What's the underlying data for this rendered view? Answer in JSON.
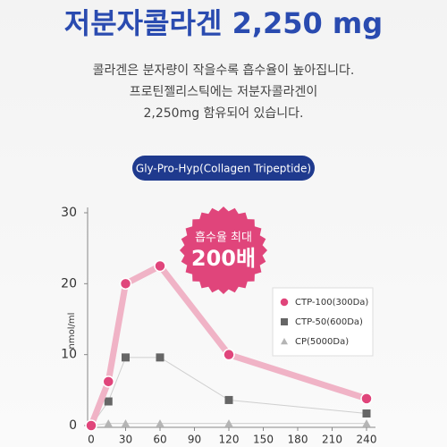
{
  "chart_data": {
    "type": "line",
    "title": "저분자콜라겐 2,250 mg",
    "description": [
      "콜라겐은 분자량이 작을수록 흡수율이 높아집니다.",
      "프로틴젤리스틱에는 저분자콜라겐이",
      "2,250mg 함유되어 있습니다."
    ],
    "subtitle": "Gly-Pro-Hyp(Collagen Tripeptide)",
    "badge": [
      "흡수율 최대",
      "200배"
    ],
    "y_label": "nmol/ml",
    "x": [
      0,
      15,
      30,
      60,
      120,
      240
    ],
    "series": [
      {
        "name": "CTP-100(300Da)",
        "color": "#e0457b",
        "marker": "circle",
        "values": [
          0,
          6.2,
          20,
          22.5,
          10,
          3.8
        ]
      },
      {
        "name": "CTP-50(600Da)",
        "color": "#666666",
        "marker": "square",
        "values": [
          0,
          3.4,
          9.6,
          9.6,
          3.6,
          1.7
        ]
      },
      {
        "name": "CP(5000Da)",
        "color": "#b5b5b5",
        "marker": "triangle",
        "values": [
          0,
          0.3,
          0.3,
          0.3,
          0.3,
          0.3
        ]
      }
    ],
    "xlim": [
      0,
      240
    ],
    "xticks": [
      0,
      30,
      60,
      90,
      120,
      150,
      180,
      210,
      240
    ],
    "ylim": [
      0,
      30
    ],
    "yticks": [
      0,
      10,
      20,
      30
    ]
  }
}
